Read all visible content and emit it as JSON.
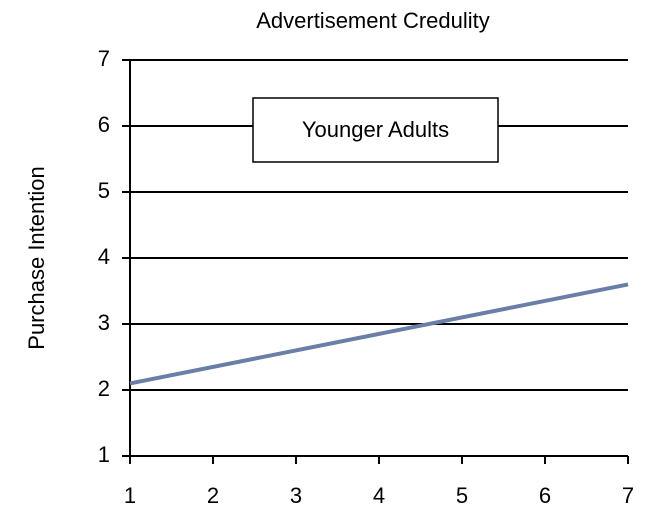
{
  "chart_data": {
    "type": "line",
    "title": "Advertisement Credulity",
    "y_label": "Purchase Intention",
    "annotation": "Younger Adults",
    "x": [
      1,
      7
    ],
    "series": [
      {
        "name": "Younger Adults",
        "color": "#6b7ea8",
        "values": [
          2.1,
          3.6
        ]
      }
    ],
    "xlim": [
      1,
      7
    ],
    "xticks": [
      1,
      2,
      3,
      4,
      5,
      6,
      7
    ],
    "ylim": [
      1,
      7
    ],
    "yticks": [
      1,
      2,
      3,
      4,
      5,
      6,
      7
    ],
    "grid": true
  }
}
